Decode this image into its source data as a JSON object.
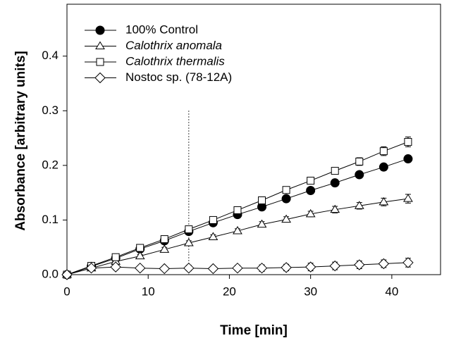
{
  "chart_data": {
    "type": "line",
    "xlabel": "Time [min]",
    "ylabel": "Absorbance [arbitrary units]",
    "x": [
      0,
      3,
      6,
      9,
      12,
      15,
      18,
      21,
      24,
      27,
      30,
      33,
      36,
      39,
      42
    ],
    "series": [
      {
        "name": "100% Control",
        "color": "#000000",
        "marker": "circle",
        "italic": false,
        "values": [
          0,
          0.015,
          0.03,
          0.047,
          0.062,
          0.079,
          0.095,
          0.11,
          0.124,
          0.139,
          0.154,
          0.168,
          0.183,
          0.197,
          0.212
        ],
        "errors": [
          0.002,
          0.003,
          0.003,
          0.003,
          0.004,
          0.004,
          0.004,
          0.004,
          0.005,
          0.005,
          0.005,
          0.005,
          0.005,
          0.006,
          0.006
        ]
      },
      {
        "name": "Calothrix anomala",
        "color": "#000000",
        "marker": "triangle",
        "italic": true,
        "values": [
          0,
          0.012,
          0.024,
          0.034,
          0.046,
          0.058,
          0.069,
          0.08,
          0.092,
          0.101,
          0.111,
          0.119,
          0.126,
          0.133,
          0.139
        ],
        "errors": [
          0.002,
          0.003,
          0.003,
          0.003,
          0.004,
          0.004,
          0.004,
          0.004,
          0.005,
          0.005,
          0.005,
          0.006,
          0.006,
          0.007,
          0.008
        ]
      },
      {
        "name": "Calothrix thermalis",
        "color": "#000000",
        "marker": "square",
        "italic": true,
        "values": [
          0,
          0.016,
          0.032,
          0.049,
          0.065,
          0.083,
          0.1,
          0.118,
          0.136,
          0.155,
          0.172,
          0.19,
          0.207,
          0.226,
          0.243
        ],
        "errors": [
          0.002,
          0.003,
          0.003,
          0.004,
          0.004,
          0.004,
          0.005,
          0.005,
          0.005,
          0.006,
          0.006,
          0.006,
          0.007,
          0.008,
          0.009
        ]
      },
      {
        "name": "Nostoc sp. (78-12A)",
        "color": "#000000",
        "marker": "diamond",
        "italic": false,
        "values": [
          0,
          0.012,
          0.014,
          0.012,
          0.011,
          0.012,
          0.011,
          0.012,
          0.012,
          0.013,
          0.014,
          0.016,
          0.018,
          0.02,
          0.022
        ],
        "errors": [
          0.002,
          0.004,
          0.005,
          0.004,
          0.004,
          0.005,
          0.004,
          0.005,
          0.006,
          0.006,
          0.007,
          0.007,
          0.007,
          0.007,
          0.008
        ]
      }
    ],
    "vline": 15,
    "xlim": [
      0,
      46
    ],
    "xticks": [
      0,
      10,
      20,
      30,
      40
    ],
    "ylim": [
      0,
      0.495
    ],
    "yticks": [
      {
        "value": 0,
        "label": "0.0"
      },
      {
        "value": 0.1,
        "label": "0.1"
      },
      {
        "value": 0.2,
        "label": "0.2"
      },
      {
        "value": 0.3,
        "label": "0.3"
      },
      {
        "value": 0.4,
        "label": "0.4"
      }
    ],
    "legend": "upper left"
  }
}
